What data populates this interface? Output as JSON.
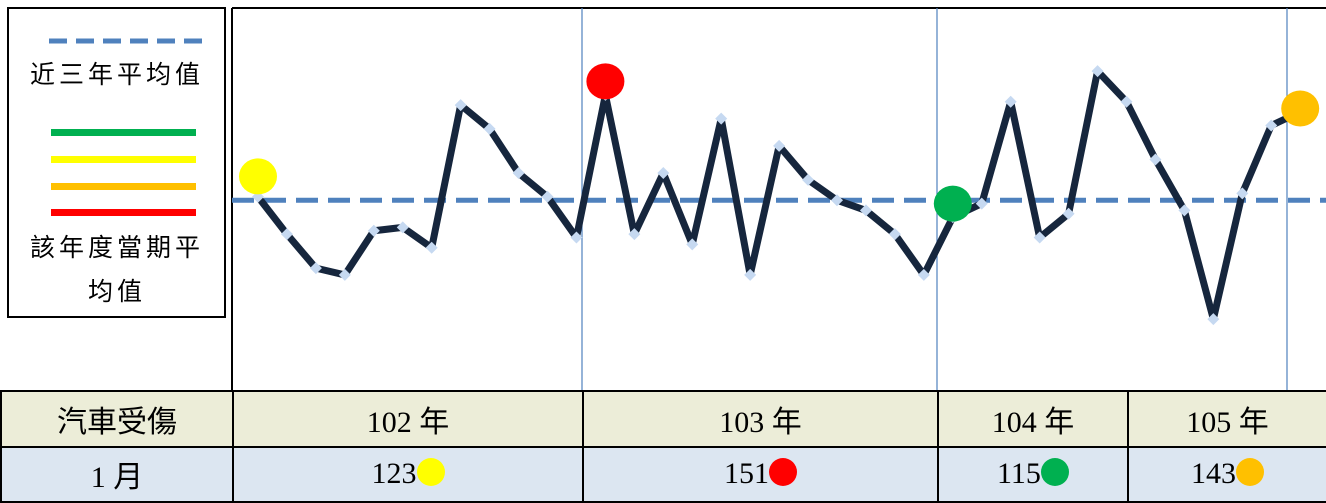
{
  "legend": {
    "average_label": "近三年平均值",
    "period_label": "該年度當期平均值",
    "period_colors": [
      "#00b050",
      "#ffff00",
      "#ffc000",
      "#ff0000"
    ]
  },
  "chart_data": {
    "type": "line",
    "color": "#16263d",
    "marker_color": "#c6d9f1",
    "values": [
      117,
      106,
      96,
      94,
      107,
      108,
      102,
      144,
      137,
      124,
      117,
      105,
      147,
      106,
      124,
      103,
      140,
      94,
      132,
      122,
      116,
      113,
      106,
      94,
      111,
      115,
      145,
      105,
      112,
      154,
      145,
      128,
      113,
      81,
      118,
      138,
      142
    ],
    "ylim": [
      61,
      172
    ],
    "average": 116,
    "average_color": "#4f81bd"
  },
  "table": {
    "header": [
      "汽車受傷",
      "102 年",
      "103 年",
      "104 年",
      "105 年"
    ],
    "row": [
      "1 月",
      123,
      151,
      115,
      143
    ],
    "marker_colors": [
      "#ffff00",
      "#ff0000",
      "#00b050",
      "#ffc000"
    ]
  }
}
